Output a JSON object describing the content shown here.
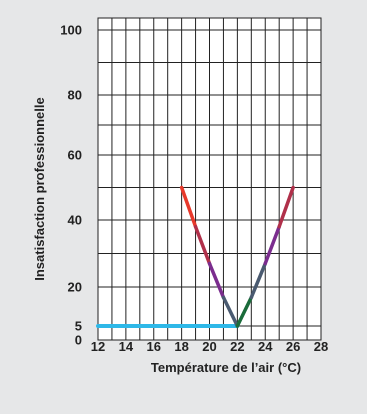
{
  "chart_data": {
    "type": "line",
    "xlabel": "Température de l’air (°C)",
    "ylabel": "Insatisfaction professionnelle",
    "x_ticks": [
      12,
      14,
      16,
      18,
      20,
      22,
      24,
      26,
      28
    ],
    "y_ticks": [
      0,
      5,
      20,
      40,
      60,
      80,
      100
    ],
    "xlim": [
      12,
      28
    ],
    "ylim": [
      0,
      100
    ],
    "grid": true,
    "series": [
      {
        "x": [
          12,
          22
        ],
        "y": [
          5,
          5
        ],
        "color": "#2eb8e8"
      },
      {
        "x": [
          18,
          19,
          20,
          21,
          22,
          23,
          24,
          25,
          26
        ],
        "y": [
          50,
          38,
          27,
          16,
          5,
          16,
          27,
          38,
          50
        ],
        "colors": [
          "#e8392b",
          "#b0304a",
          "#7b2d8e",
          "#4a5a70",
          "#1a6b3a",
          "#4a5a70",
          "#7b2d8e",
          "#b0304a",
          "#e8392b"
        ]
      }
    ]
  }
}
